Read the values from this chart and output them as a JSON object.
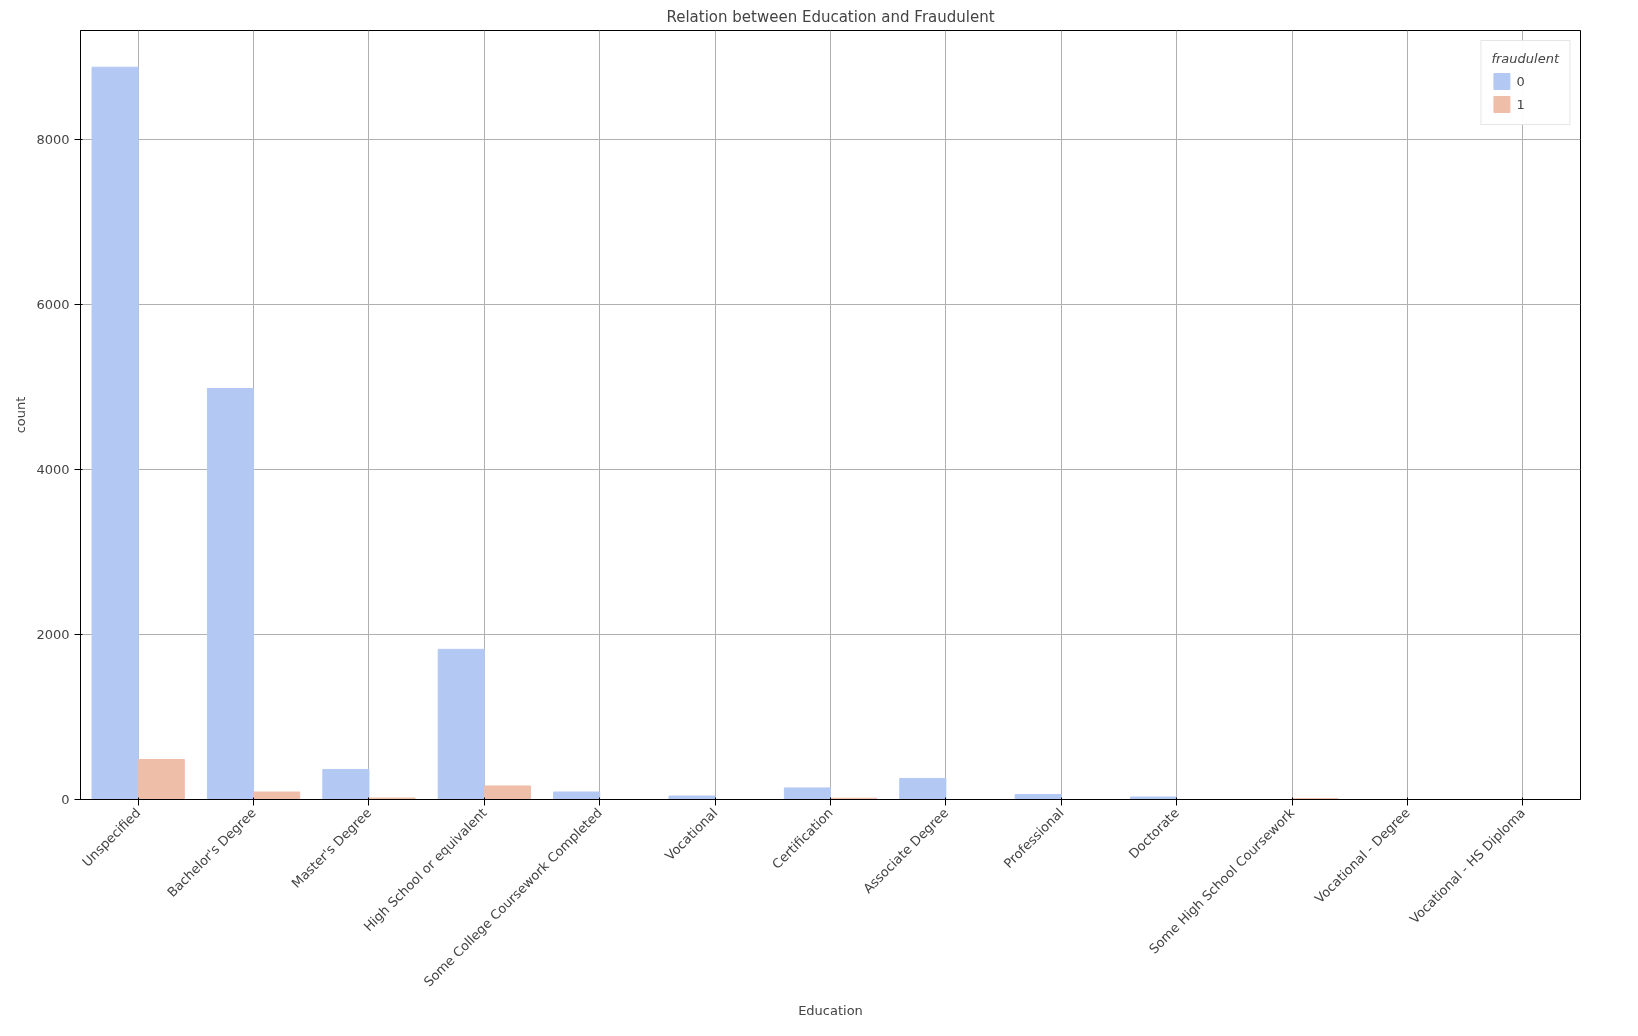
{
  "chart_data": {
    "type": "bar",
    "title": "Relation between Education and Fraudulent",
    "xlabel": "Education",
    "ylabel": "count",
    "legend_title": "fraudulent",
    "categories": [
      "Unspecified",
      "Bachelor's Degree",
      "Master's Degree",
      "High School or equivalent",
      "Some College Coursework Completed",
      "Vocational",
      "Certification",
      "Associate Degree",
      "Professional",
      "Doctorate",
      "Some High School Coursework",
      "Vocational - Degree",
      "Vocational - HS Diploma"
    ],
    "series": [
      {
        "name": "0",
        "color": "#b3c9f4",
        "values": [
          8875,
          4981,
          364,
          1820,
          91,
          42,
          140,
          255,
          61,
          30,
          0,
          0,
          0
        ]
      },
      {
        "name": "1",
        "color": "#efbea9",
        "values": [
          485,
          91,
          18,
          164,
          0,
          0,
          15,
          0,
          0,
          0,
          10,
          0,
          0
        ]
      }
    ],
    "ylim": [
      0,
      9320
    ],
    "yticks": [
      0,
      2000,
      4000,
      6000,
      8000
    ],
    "grid": true,
    "legend": "top right"
  }
}
